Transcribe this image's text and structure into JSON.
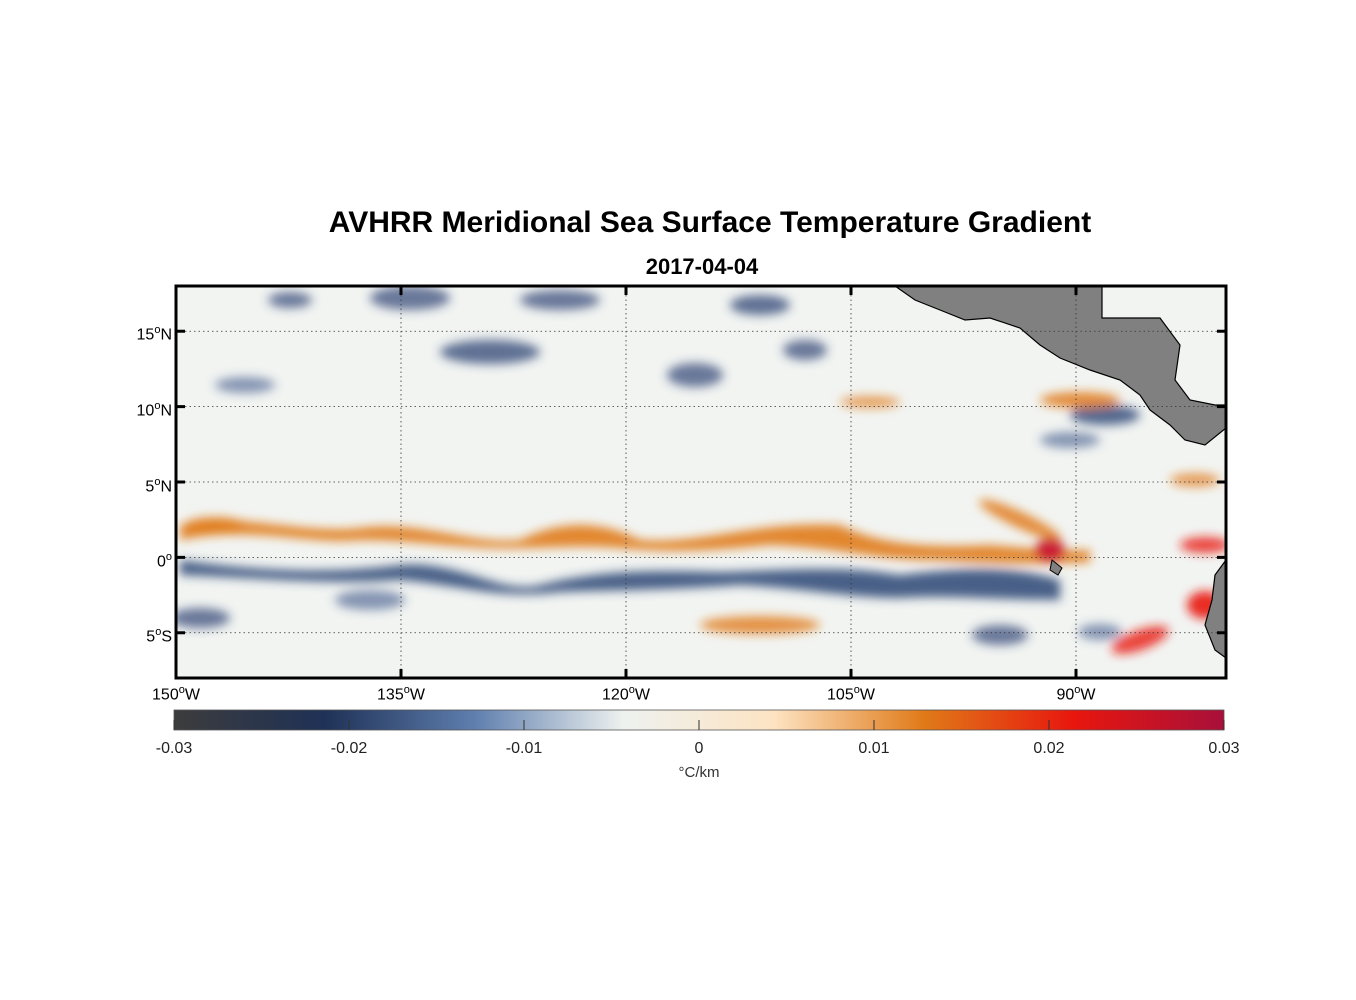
{
  "title": "AVHRR Meridional Sea Surface Temperature Gradient",
  "subtitle": "2017-04-04",
  "map": {
    "lon_range": [
      -150,
      -80
    ],
    "lat_range": [
      -8,
      18
    ],
    "gridlines": true,
    "land_color": "#808080",
    "lat_labels": [
      {
        "deg": "15",
        "hemi": "N"
      },
      {
        "deg": "10",
        "hemi": "N"
      },
      {
        "deg": "5",
        "hemi": "N"
      },
      {
        "deg": "0",
        "hemi": ""
      },
      {
        "deg": "5",
        "hemi": "S"
      }
    ],
    "lon_labels": [
      {
        "deg": "150",
        "hemi": "W"
      },
      {
        "deg": "135",
        "hemi": "W"
      },
      {
        "deg": "120",
        "hemi": "W"
      },
      {
        "deg": "105",
        "hemi": "W"
      },
      {
        "deg": "90",
        "hemi": "W"
      }
    ]
  },
  "colorbar": {
    "range": [
      -0.03,
      0.03
    ],
    "tick_labels": [
      "-0.03",
      "-0.02",
      "-0.01",
      "0",
      "0.01",
      "0.02",
      "0.03"
    ],
    "unit": "°C/km",
    "colors": [
      "#3c3c3c",
      "#1f3156",
      "#5e7eae",
      "#eef2ef",
      "#fde3c2",
      "#e07a18",
      "#e8160e",
      "#a8103a"
    ]
  }
}
